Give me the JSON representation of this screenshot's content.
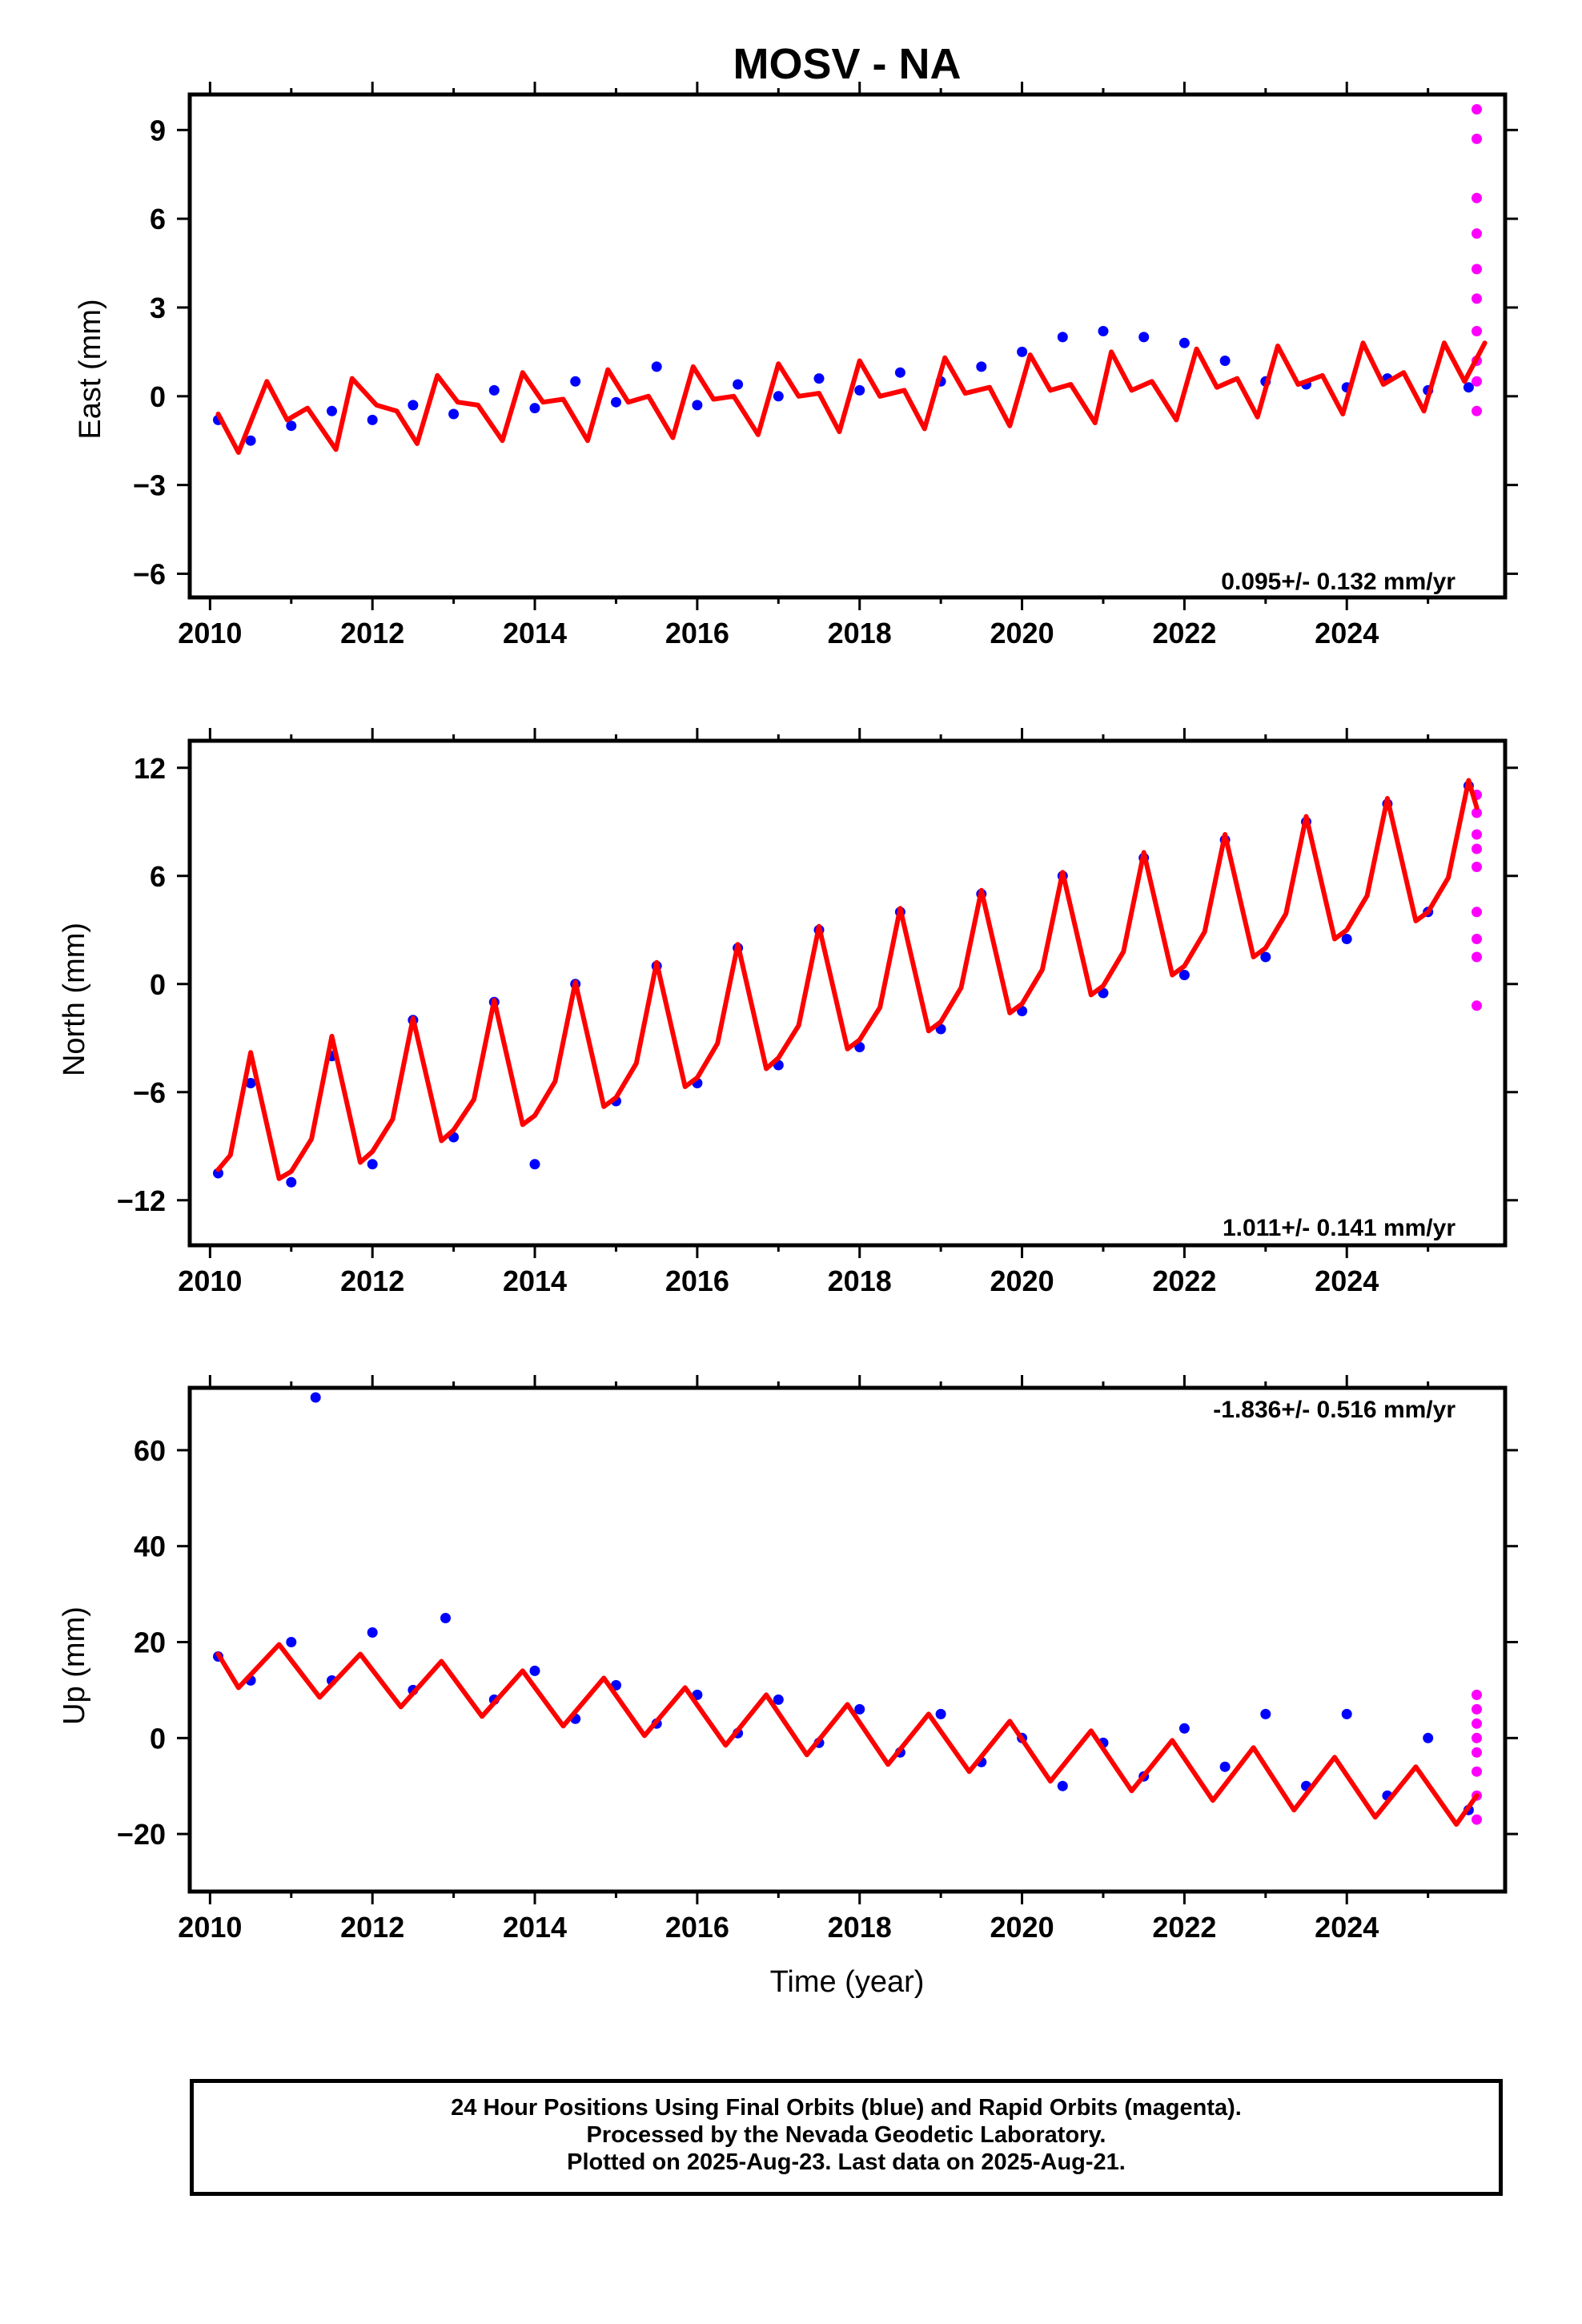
{
  "title": "MOSV - NA",
  "x_axis_label": "Time (year)",
  "footer": {
    "line1": "24 Hour Positions Using Final Orbits (blue) and Rapid Orbits (magenta).",
    "line2": "Processed by the Nevada Geodetic Laboratory.",
    "line3": "Plotted on 2025-Aug-23. Last data on 2025-Aug-21."
  },
  "colors": {
    "final": "#0000ff",
    "rapid": "#ff00ff",
    "fit": "#ff0000",
    "frame": "#000000"
  },
  "chart_data": [
    {
      "type": "scatter",
      "panel": "east",
      "ylabel": "East (mm)",
      "rate_label": "0.095+/- 0.132 mm/yr",
      "rate_position": "bottom-right",
      "xlim": [
        2009.75,
        2025.95
      ],
      "ylim": [
        -6.8,
        10.2
      ],
      "xticks": [
        2010,
        2012,
        2014,
        2016,
        2018,
        2020,
        2022,
        2024
      ],
      "yticks": [
        -6,
        -3,
        0,
        3,
        6,
        9
      ],
      "grid": false,
      "series": [
        {
          "name": "Final Orbits",
          "color": "#0000ff",
          "x": [
            2010.1,
            2010.5,
            2011.0,
            2011.5,
            2012.0,
            2012.5,
            2013.0,
            2013.5,
            2014.0,
            2014.5,
            2015.0,
            2015.5,
            2016.0,
            2016.5,
            2017.0,
            2017.5,
            2018.0,
            2018.5,
            2019.0,
            2019.5,
            2020.0,
            2020.5,
            2021.0,
            2021.5,
            2022.0,
            2022.5,
            2023.0,
            2023.5,
            2024.0,
            2024.5,
            2025.0,
            2025.5
          ],
          "y": [
            -0.8,
            -1.5,
            -1.0,
            -0.5,
            -0.8,
            -0.3,
            -0.6,
            0.2,
            -0.4,
            0.5,
            -0.2,
            1.0,
            -0.3,
            0.4,
            0.0,
            0.6,
            0.2,
            0.8,
            0.5,
            1.0,
            1.5,
            2.0,
            2.2,
            2.0,
            1.8,
            1.2,
            0.5,
            0.4,
            0.3,
            0.6,
            0.2,
            0.3
          ]
        },
        {
          "name": "Rapid Orbits",
          "color": "#ff00ff",
          "x": [
            2025.6,
            2025.6,
            2025.6,
            2025.6,
            2025.6,
            2025.6,
            2025.6,
            2025.6,
            2025.6,
            2025.6
          ],
          "y": [
            9.7,
            8.7,
            6.7,
            5.5,
            4.3,
            3.3,
            2.2,
            1.2,
            0.5,
            -0.5
          ]
        }
      ],
      "fit": {
        "name": "Model",
        "color": "#ff0000",
        "rate": 0.095,
        "x": [
          2010.1,
          2010.35,
          2010.7,
          2010.95,
          2011.2,
          2011.55,
          2011.75,
          2012.05,
          2012.3,
          2012.55,
          2012.8,
          2013.05,
          2013.3,
          2013.6,
          2013.85,
          2014.1,
          2014.35,
          2014.65,
          2014.9,
          2015.15,
          2015.4,
          2015.7,
          2015.95,
          2016.2,
          2016.45,
          2016.75,
          2017.0,
          2017.25,
          2017.5,
          2017.75,
          2018.0,
          2018.25,
          2018.55,
          2018.8,
          2019.05,
          2019.3,
          2019.6,
          2019.85,
          2020.1,
          2020.35,
          2020.6,
          2020.9,
          2021.1,
          2021.35,
          2021.6,
          2021.9,
          2022.15,
          2022.4,
          2022.65,
          2022.9,
          2023.15,
          2023.4,
          2023.7,
          2023.95,
          2024.2,
          2024.45,
          2024.7,
          2024.95,
          2025.2,
          2025.45,
          2025.7
        ],
        "y": [
          -0.6,
          -1.9,
          0.5,
          -0.8,
          -0.4,
          -1.8,
          0.6,
          -0.3,
          -0.5,
          -1.6,
          0.7,
          -0.2,
          -0.3,
          -1.5,
          0.8,
          -0.2,
          -0.1,
          -1.5,
          0.9,
          -0.2,
          0.0,
          -1.4,
          1.0,
          -0.1,
          0.0,
          -1.3,
          1.1,
          0.0,
          0.1,
          -1.2,
          1.2,
          0.0,
          0.2,
          -1.1,
          1.3,
          0.1,
          0.3,
          -1.0,
          1.4,
          0.2,
          0.4,
          -0.9,
          1.5,
          0.2,
          0.5,
          -0.8,
          1.6,
          0.3,
          0.6,
          -0.7,
          1.7,
          0.4,
          0.7,
          -0.6,
          1.8,
          0.4,
          0.8,
          -0.5,
          1.8,
          0.5,
          1.8
        ]
      }
    },
    {
      "type": "scatter",
      "panel": "north",
      "ylabel": "North (mm)",
      "rate_label": "1.011+/- 0.141 mm/yr",
      "rate_position": "bottom-right",
      "xlim": [
        2009.75,
        2025.95
      ],
      "ylim": [
        -14.5,
        13.5
      ],
      "xticks": [
        2010,
        2012,
        2014,
        2016,
        2018,
        2020,
        2022,
        2024
      ],
      "yticks": [
        -12,
        -6,
        0,
        6,
        12
      ],
      "grid": false,
      "series": [
        {
          "name": "Final Orbits",
          "color": "#0000ff",
          "x": [
            2010.1,
            2010.5,
            2011.0,
            2011.5,
            2012.0,
            2012.5,
            2013.0,
            2013.5,
            2014.0,
            2014.5,
            2015.0,
            2015.5,
            2016.0,
            2016.5,
            2017.0,
            2017.5,
            2018.0,
            2018.5,
            2019.0,
            2019.5,
            2020.0,
            2020.5,
            2021.0,
            2021.5,
            2022.0,
            2022.5,
            2023.0,
            2023.5,
            2024.0,
            2024.5,
            2025.0,
            2025.5
          ],
          "y": [
            -10.5,
            -5.5,
            -11.0,
            -4.0,
            -10.0,
            -2.0,
            -8.5,
            -1.0,
            -10.0,
            0.0,
            -6.5,
            1.0,
            -5.5,
            2.0,
            -4.5,
            3.0,
            -3.5,
            4.0,
            -2.5,
            5.0,
            -1.5,
            6.0,
            -0.5,
            7.0,
            0.5,
            8.0,
            1.5,
            9.0,
            2.5,
            10.0,
            4.0,
            11.0
          ]
        },
        {
          "name": "Rapid Orbits",
          "color": "#ff00ff",
          "x": [
            2025.6,
            2025.6,
            2025.6,
            2025.6,
            2025.6,
            2025.6,
            2025.6,
            2025.6,
            2025.6
          ],
          "y": [
            10.5,
            9.5,
            8.3,
            7.5,
            6.5,
            4.0,
            2.5,
            1.5,
            -1.2
          ]
        }
      ],
      "fit": {
        "name": "Model",
        "color": "#ff0000",
        "rate": 1.011,
        "x": [
          2010.1,
          2010.25,
          2010.5,
          2010.85,
          2011.0,
          2011.25,
          2011.5,
          2011.85,
          2012.0,
          2012.25,
          2012.5,
          2012.85,
          2013.0,
          2013.25,
          2013.5,
          2013.85,
          2014.0,
          2014.25,
          2014.5,
          2014.85,
          2015.0,
          2015.25,
          2015.5,
          2015.85,
          2016.0,
          2016.25,
          2016.5,
          2016.85,
          2017.0,
          2017.25,
          2017.5,
          2017.85,
          2018.0,
          2018.25,
          2018.5,
          2018.85,
          2019.0,
          2019.25,
          2019.5,
          2019.85,
          2020.0,
          2020.25,
          2020.5,
          2020.85,
          2021.0,
          2021.25,
          2021.5,
          2021.85,
          2022.0,
          2022.25,
          2022.5,
          2022.85,
          2023.0,
          2023.25,
          2023.5,
          2023.85,
          2024.0,
          2024.25,
          2024.5,
          2024.85,
          2025.0,
          2025.25,
          2025.5,
          2025.6
        ],
        "y": [
          -10.3,
          -9.5,
          -3.8,
          -10.8,
          -10.4,
          -8.6,
          -2.9,
          -9.9,
          -9.3,
          -7.5,
          -1.9,
          -8.7,
          -8.1,
          -6.4,
          -0.9,
          -7.8,
          -7.3,
          -5.4,
          0.1,
          -6.8,
          -6.3,
          -4.4,
          1.2,
          -5.7,
          -5.2,
          -3.3,
          2.2,
          -4.7,
          -4.1,
          -2.3,
          3.2,
          -3.6,
          -3.1,
          -1.3,
          4.2,
          -2.6,
          -2.1,
          -0.2,
          5.2,
          -1.6,
          -1.1,
          0.8,
          6.2,
          -0.6,
          -0.1,
          1.8,
          7.3,
          0.5,
          1.0,
          2.9,
          8.3,
          1.5,
          2.0,
          3.9,
          9.3,
          2.5,
          3.0,
          4.9,
          10.3,
          3.5,
          4.0,
          5.9,
          11.3,
          9.8
        ]
      }
    },
    {
      "type": "scatter",
      "panel": "up",
      "ylabel": "Up (mm)",
      "rate_label": "-1.836+/- 0.516 mm/yr",
      "rate_position": "top-right",
      "xlim": [
        2009.75,
        2025.95
      ],
      "ylim": [
        -32,
        73
      ],
      "xticks": [
        2010,
        2012,
        2014,
        2016,
        2018,
        2020,
        2022,
        2024
      ],
      "yticks": [
        -20,
        0,
        20,
        40,
        60
      ],
      "grid": false,
      "series": [
        {
          "name": "Final Orbits",
          "color": "#0000ff",
          "x": [
            2010.1,
            2010.5,
            2011.0,
            2011.3,
            2011.5,
            2012.0,
            2012.5,
            2012.9,
            2013.5,
            2014.0,
            2014.5,
            2015.0,
            2015.5,
            2016.0,
            2016.5,
            2017.0,
            2017.5,
            2018.0,
            2018.5,
            2019.0,
            2019.5,
            2020.0,
            2020.5,
            2021.0,
            2021.5,
            2022.0,
            2022.5,
            2023.0,
            2023.5,
            2024.0,
            2024.5,
            2025.0,
            2025.5
          ],
          "y": [
            17.0,
            12.0,
            20.0,
            71.0,
            12.0,
            22.0,
            10.0,
            25.0,
            8.0,
            14.0,
            4.0,
            11.0,
            3.0,
            9.0,
            1.0,
            8.0,
            -1.0,
            6.0,
            -3.0,
            5.0,
            -5.0,
            0.0,
            -10.0,
            -1.0,
            -8.0,
            2.0,
            -6.0,
            5.0,
            -10.0,
            5.0,
            -12.0,
            0.0,
            -15.0
          ]
        },
        {
          "name": "Rapid Orbits",
          "color": "#ff00ff",
          "x": [
            2025.6,
            2025.6,
            2025.6,
            2025.6,
            2025.6,
            2025.6,
            2025.6,
            2025.6
          ],
          "y": [
            9.0,
            6.0,
            3.0,
            0.0,
            -3.0,
            -7.0,
            -12.0,
            -17.0
          ]
        }
      ],
      "fit": {
        "name": "Model",
        "color": "#ff0000",
        "rate": -1.836,
        "x": [
          2010.1,
          2010.35,
          2010.85,
          2011.35,
          2011.85,
          2012.35,
          2012.85,
          2013.35,
          2013.85,
          2014.35,
          2014.85,
          2015.35,
          2015.85,
          2016.35,
          2016.85,
          2017.35,
          2017.85,
          2018.35,
          2018.85,
          2019.35,
          2019.85,
          2020.35,
          2020.85,
          2021.35,
          2021.85,
          2022.35,
          2022.85,
          2023.35,
          2023.85,
          2024.35,
          2024.85,
          2025.35,
          2025.6
        ],
        "y": [
          17.5,
          10.5,
          19.5,
          8.5,
          17.5,
          6.5,
          16.0,
          4.5,
          14.0,
          2.5,
          12.5,
          0.5,
          10.5,
          -1.5,
          9.0,
          -3.5,
          7.0,
          -5.5,
          5.0,
          -7.0,
          3.5,
          -9.0,
          1.5,
          -11.0,
          -0.5,
          -13.0,
          -2.0,
          -15.0,
          -4.0,
          -16.5,
          -6.0,
          -18.0,
          -12.0
        ]
      }
    }
  ]
}
